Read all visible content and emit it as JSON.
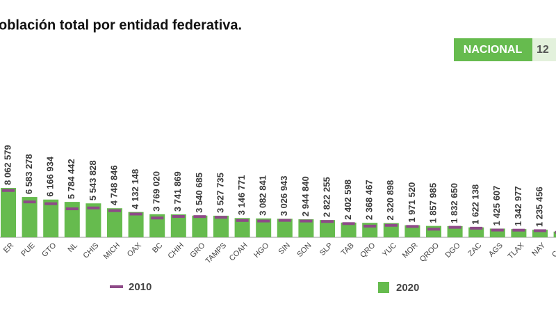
{
  "chart_data": {
    "type": "bar",
    "title": "oblación total por entidad federativa.",
    "badge": {
      "label": "NACIONAL",
      "value": "12"
    },
    "categories": [
      "ER",
      "PUE",
      "GTO",
      "NL",
      "CHIS",
      "MICH",
      "OAX",
      "BC",
      "CHIH",
      "GRO",
      "TAMPS",
      "COAH",
      "HGO",
      "SIN",
      "SON",
      "SLP",
      "TAB",
      "QRO",
      "YUC",
      "MOR",
      "QROO",
      "DGO",
      "ZAC",
      "AGS",
      "TLAX",
      "NAY",
      "CAM"
    ],
    "series": [
      {
        "name": "2010",
        "color": "#8e4a88",
        "values": [
          7643194,
          5779829,
          5486372,
          4653458,
          4796580,
          4351037,
          3801962,
          3155070,
          3406465,
          3388768,
          3268554,
          2748391,
          2665018,
          2767761,
          2662480,
          2585518,
          2238603,
          1827937,
          1955577,
          1777227,
          1325578,
          1632934,
          1490668,
          1184996,
          1169936,
          1084979,
          822441
        ]
      },
      {
        "name": "2020",
        "color": "#66bb4e",
        "values": [
          8062579,
          6583278,
          6166934,
          5784442,
          5543828,
          4748846,
          4132148,
          3769020,
          3741869,
          3540685,
          3527735,
          3146771,
          3082841,
          3026943,
          2944840,
          2822255,
          2402598,
          2368467,
          2320898,
          1971520,
          1857985,
          1832650,
          1622138,
          1425607,
          1342977,
          1235456,
          928363
        ],
        "value_labels": [
          "8 062 579",
          "6 583 278",
          "6 166 934",
          "5 784 442",
          "5 543 828",
          "4 748 846",
          "4 132 148",
          "3 769 020",
          "3 741 869",
          "3 540 685",
          "3 527 735",
          "3 146 771",
          "3 082 841",
          "3 026 943",
          "2 944 840",
          "2 822 255",
          "2 402 598",
          "2 368 467",
          "2 320 898",
          "1 971 520",
          "1 857 985",
          "1 832 650",
          "1 622 138",
          "1 425 607",
          "1 342 977",
          "1 235 456",
          null
        ]
      }
    ]
  }
}
